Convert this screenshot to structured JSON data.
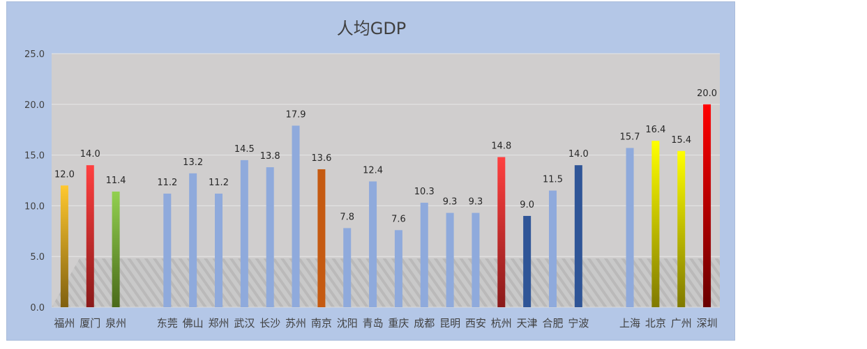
{
  "chart_data": {
    "type": "bar",
    "title": "人均GDP",
    "xlabel": "",
    "ylabel": "",
    "ylim": [
      0,
      25
    ],
    "yticks": [
      "0.0",
      "5.0",
      "10.0",
      "15.0",
      "20.0",
      "25.0"
    ],
    "grid": true,
    "legend": "none",
    "categories": [
      "福州",
      "厦门",
      "泉州",
      "",
      "东莞",
      "佛山",
      "郑州",
      "武汉",
      "长沙",
      "苏州",
      "南京",
      "沈阳",
      "青岛",
      "重庆",
      "成都",
      "昆明",
      "西安",
      "杭州",
      "天津",
      "合肥",
      "宁波",
      "",
      "上海",
      "北京",
      "广州",
      "深圳"
    ],
    "values": [
      12.0,
      14.0,
      11.4,
      null,
      11.2,
      13.2,
      11.2,
      14.5,
      13.8,
      17.9,
      13.6,
      7.8,
      12.4,
      7.6,
      10.3,
      9.3,
      9.3,
      14.8,
      9.0,
      11.5,
      14.0,
      null,
      15.7,
      16.4,
      15.4,
      20.0
    ],
    "labels": [
      "12.0",
      "14.0",
      "11.4",
      "",
      "11.2",
      "13.2",
      "11.2",
      "14.5",
      "13.8",
      "17.9",
      "13.6",
      "7.8",
      "12.4",
      "7.6",
      "10.3",
      "9.3",
      "9.3",
      "14.8",
      "9.0",
      "11.5",
      "14.0",
      "",
      "15.7",
      "16.4",
      "15.4",
      "20.0"
    ],
    "bar_colors": [
      "gold-gradient",
      "red-gradient",
      "green-gradient",
      "",
      "#8faadc",
      "#8faadc",
      "#8faadc",
      "#8faadc",
      "#8faadc",
      "#8faadc",
      "#c55a11",
      "#8faadc",
      "#8faadc",
      "#8faadc",
      "#8faadc",
      "#8faadc",
      "#8faadc",
      "red-gradient",
      "#2f5597",
      "#8faadc",
      "#2f5597",
      "",
      "#8faadc",
      "yellow-gradient",
      "yellow-gradient",
      "crimson-gradient"
    ]
  },
  "colors": {
    "background": "#b4c7e7",
    "plot_area": "#d0cece",
    "gridline": "#e6e6e6",
    "default_bar": "#8faadc"
  }
}
